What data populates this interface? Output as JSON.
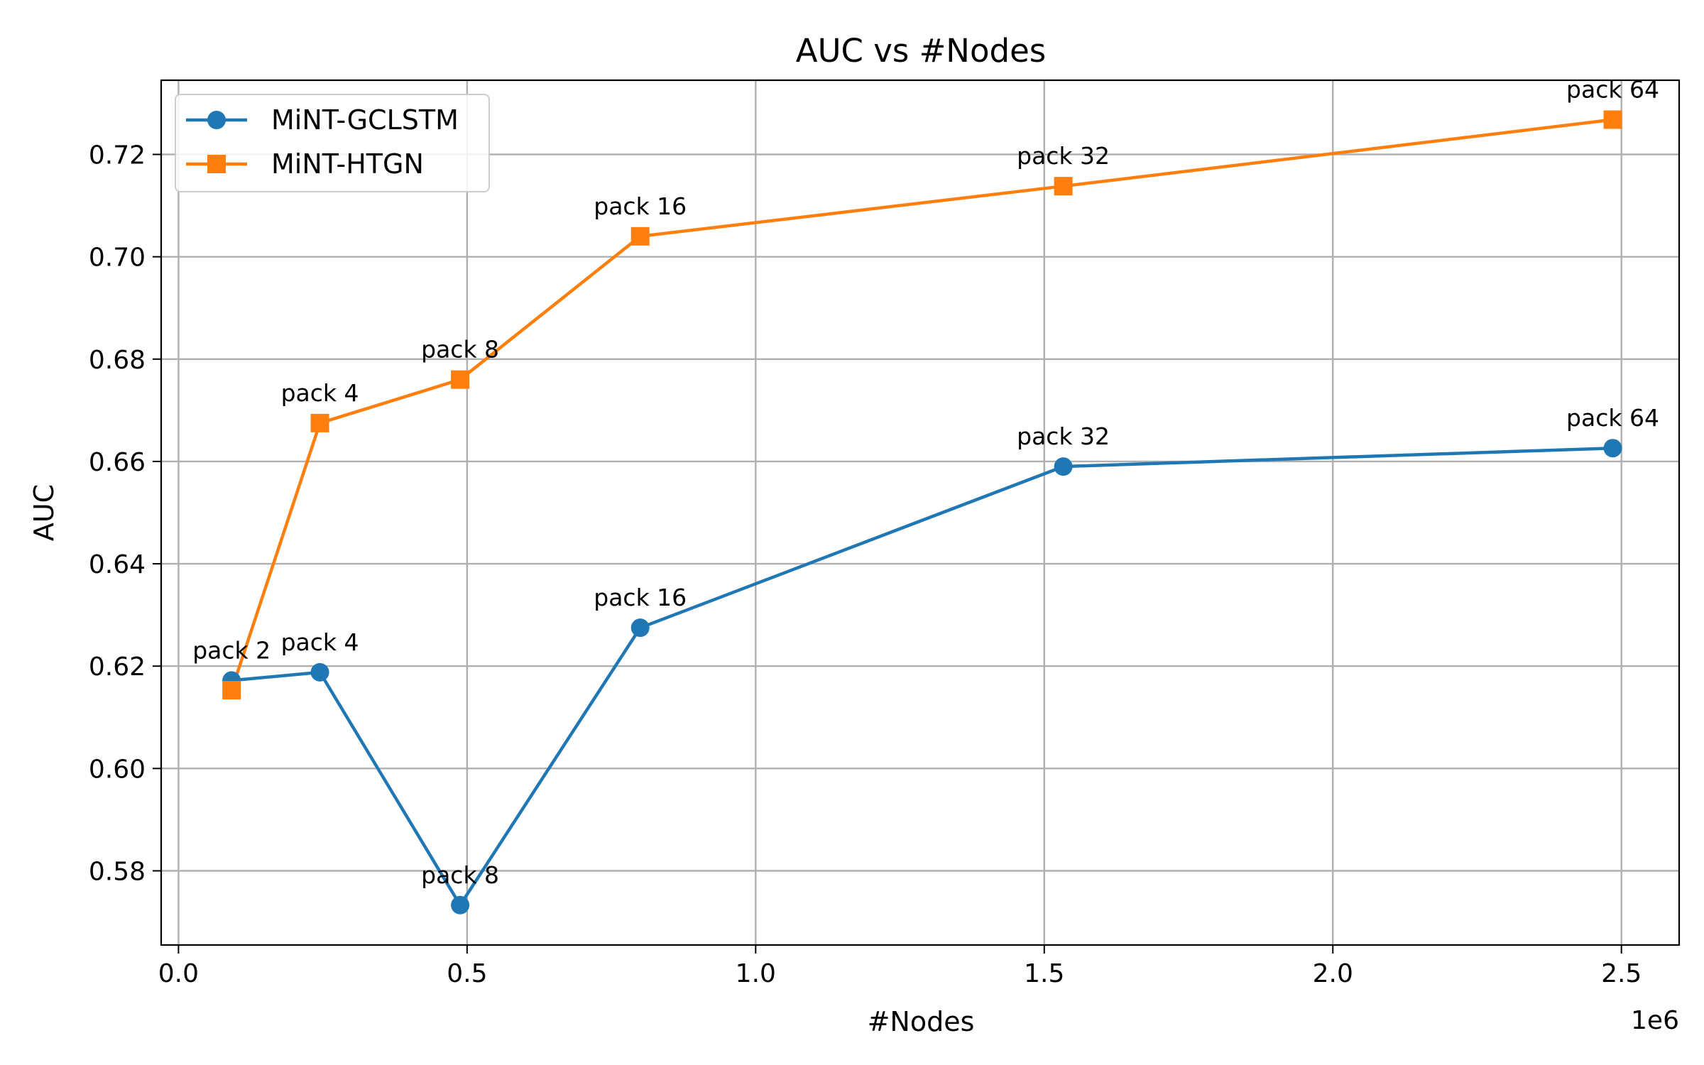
{
  "chart_data": {
    "type": "line",
    "title": "AUC vs #Nodes",
    "xlabel": "#Nodes",
    "ylabel": "AUC",
    "x_offset_label": "1e6",
    "xlim": [
      -0.03,
      2.6
    ],
    "ylim": [
      0.5655,
      0.7345
    ],
    "x_ticks": [
      0.0,
      0.5,
      1.0,
      1.5,
      2.0,
      2.5
    ],
    "x_tick_labels": [
      "0.0",
      "0.5",
      "1.0",
      "1.5",
      "2.0",
      "2.5"
    ],
    "y_ticks": [
      0.58,
      0.6,
      0.62,
      0.64,
      0.66,
      0.68,
      0.7,
      0.72
    ],
    "y_tick_labels": [
      "0.58",
      "0.60",
      "0.62",
      "0.64",
      "0.66",
      "0.68",
      "0.70",
      "0.72"
    ],
    "grid": true,
    "legend_position": "top-left",
    "series": [
      {
        "name": "MiNT-GCLSTM",
        "color": "#1f77b4",
        "marker": "circle",
        "x": [
          0.092,
          0.245,
          0.488,
          0.8,
          1.533,
          2.485
        ],
        "y": [
          0.6172,
          0.6188,
          0.5733,
          0.6275,
          0.659,
          0.6626
        ],
        "labels": [
          "pack 2",
          "pack 4",
          "pack 8",
          "pack 16",
          "pack 32",
          "pack 64"
        ]
      },
      {
        "name": "MiNT-HTGN",
        "color": "#ff7f0e",
        "marker": "square",
        "x": [
          0.092,
          0.245,
          0.488,
          0.8,
          1.533,
          2.485
        ],
        "y": [
          0.6153,
          0.6675,
          0.676,
          0.704,
          0.7138,
          0.7268
        ],
        "labels": [
          "",
          "pack 4",
          "pack 8",
          "pack 16",
          "pack 32",
          "pack 64"
        ]
      }
    ]
  }
}
